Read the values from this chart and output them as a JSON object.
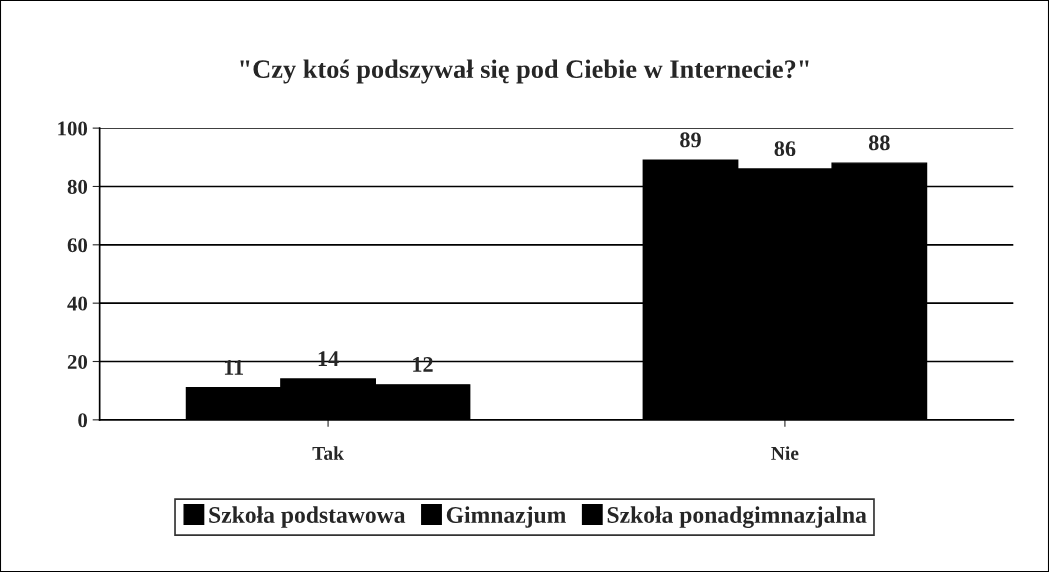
{
  "chart_data": {
    "type": "bar",
    "title": "\"Czy ktoś podszywał się pod Ciebie w Internecie?\"",
    "categories": [
      "Tak",
      "Nie"
    ],
    "series": [
      {
        "name": "Szkoła podstawowa",
        "color": "#000000",
        "values": [
          11,
          89
        ]
      },
      {
        "name": "Gimnazjum",
        "color": "#000000",
        "values": [
          14,
          86
        ]
      },
      {
        "name": "Szkoła ponadgimnazjalna",
        "color": "#000000",
        "values": [
          12,
          88
        ]
      }
    ],
    "ylim": [
      0,
      100
    ],
    "yticks": [
      0,
      20,
      40,
      60,
      80,
      100
    ],
    "grid": "y",
    "legend": "bottom",
    "data_labels": true
  }
}
